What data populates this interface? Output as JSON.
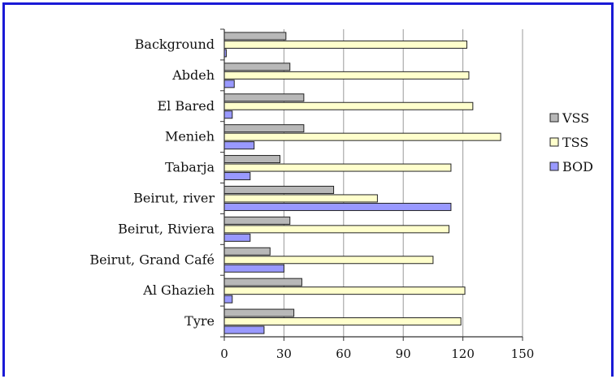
{
  "chart_data": {
    "type": "bar",
    "orientation": "horizontal",
    "categories": [
      "Background",
      "Abdeh",
      "El Bared",
      "Menieh",
      "Tabarja",
      "Beirut, river",
      "Beirut, Riviera",
      "Beirut, Grand Café",
      "Al Ghazieh",
      "Tyre"
    ],
    "series": [
      {
        "name": "VSS",
        "color": "#b8b8b8",
        "values": [
          31,
          33,
          40,
          40,
          28,
          55,
          33,
          23,
          39,
          35
        ]
      },
      {
        "name": "TSS",
        "color": "#ffffcc",
        "values": [
          122,
          123,
          125,
          139,
          114,
          77,
          113,
          105,
          121,
          119
        ]
      },
      {
        "name": "BOD",
        "color": "#9999ff",
        "values": [
          1,
          5,
          4,
          15,
          13,
          114,
          13,
          30,
          4,
          20
        ]
      }
    ],
    "xlim": [
      0,
      150
    ],
    "xticks": [
      "0",
      "30",
      "60",
      "90",
      "120",
      "150"
    ],
    "grid": "vertical",
    "legend": "right"
  }
}
